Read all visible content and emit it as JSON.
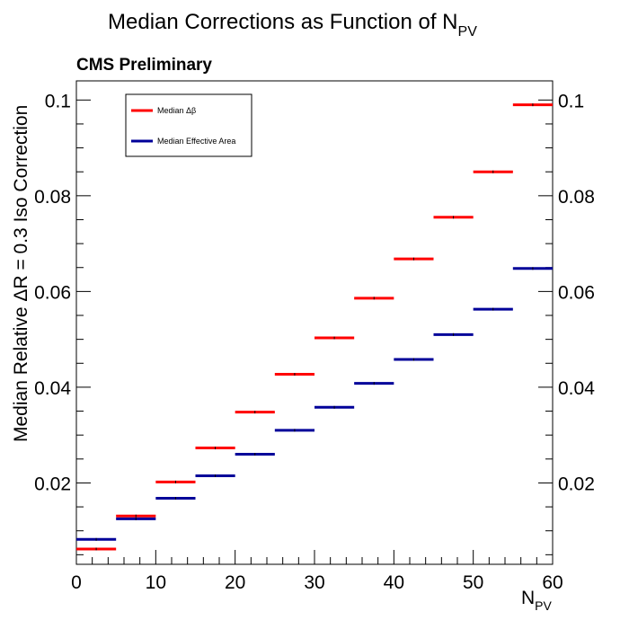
{
  "chart_data": {
    "type": "step",
    "title": "Median Corrections as Function of N",
    "title_sub": "PV",
    "label": "CMS Preliminary",
    "xlabel": "N",
    "xlabel_sub": "PV",
    "ylabel": "Median Relative ΔR = 0.3 Iso Correction",
    "xlim": [
      0,
      60
    ],
    "ylim": [
      0.003,
      0.104
    ],
    "x_bin_edges": [
      0,
      5,
      10,
      15,
      20,
      25,
      30,
      35,
      40,
      45,
      50,
      55,
      60
    ],
    "x_ticks": [
      0,
      10,
      20,
      30,
      40,
      50,
      60
    ],
    "y_ticks": [
      0.02,
      0.04,
      0.06,
      0.08,
      0.1
    ],
    "y_tick_labels": [
      "0.02",
      "0.04",
      "0.06",
      "0.08",
      "0.1"
    ],
    "legend_position": "top-left",
    "series": [
      {
        "name": "Median Δβ",
        "color": "#ff0000",
        "values": [
          0.0062,
          0.0131,
          0.0202,
          0.0273,
          0.0348,
          0.0427,
          0.0503,
          0.0586,
          0.0668,
          0.0755,
          0.085,
          0.099
        ]
      },
      {
        "name": "Median Effective Area",
        "color": "#000099",
        "values": [
          0.0082,
          0.0125,
          0.0168,
          0.0215,
          0.026,
          0.031,
          0.0358,
          0.0408,
          0.0458,
          0.051,
          0.0563,
          0.0648
        ]
      }
    ]
  }
}
